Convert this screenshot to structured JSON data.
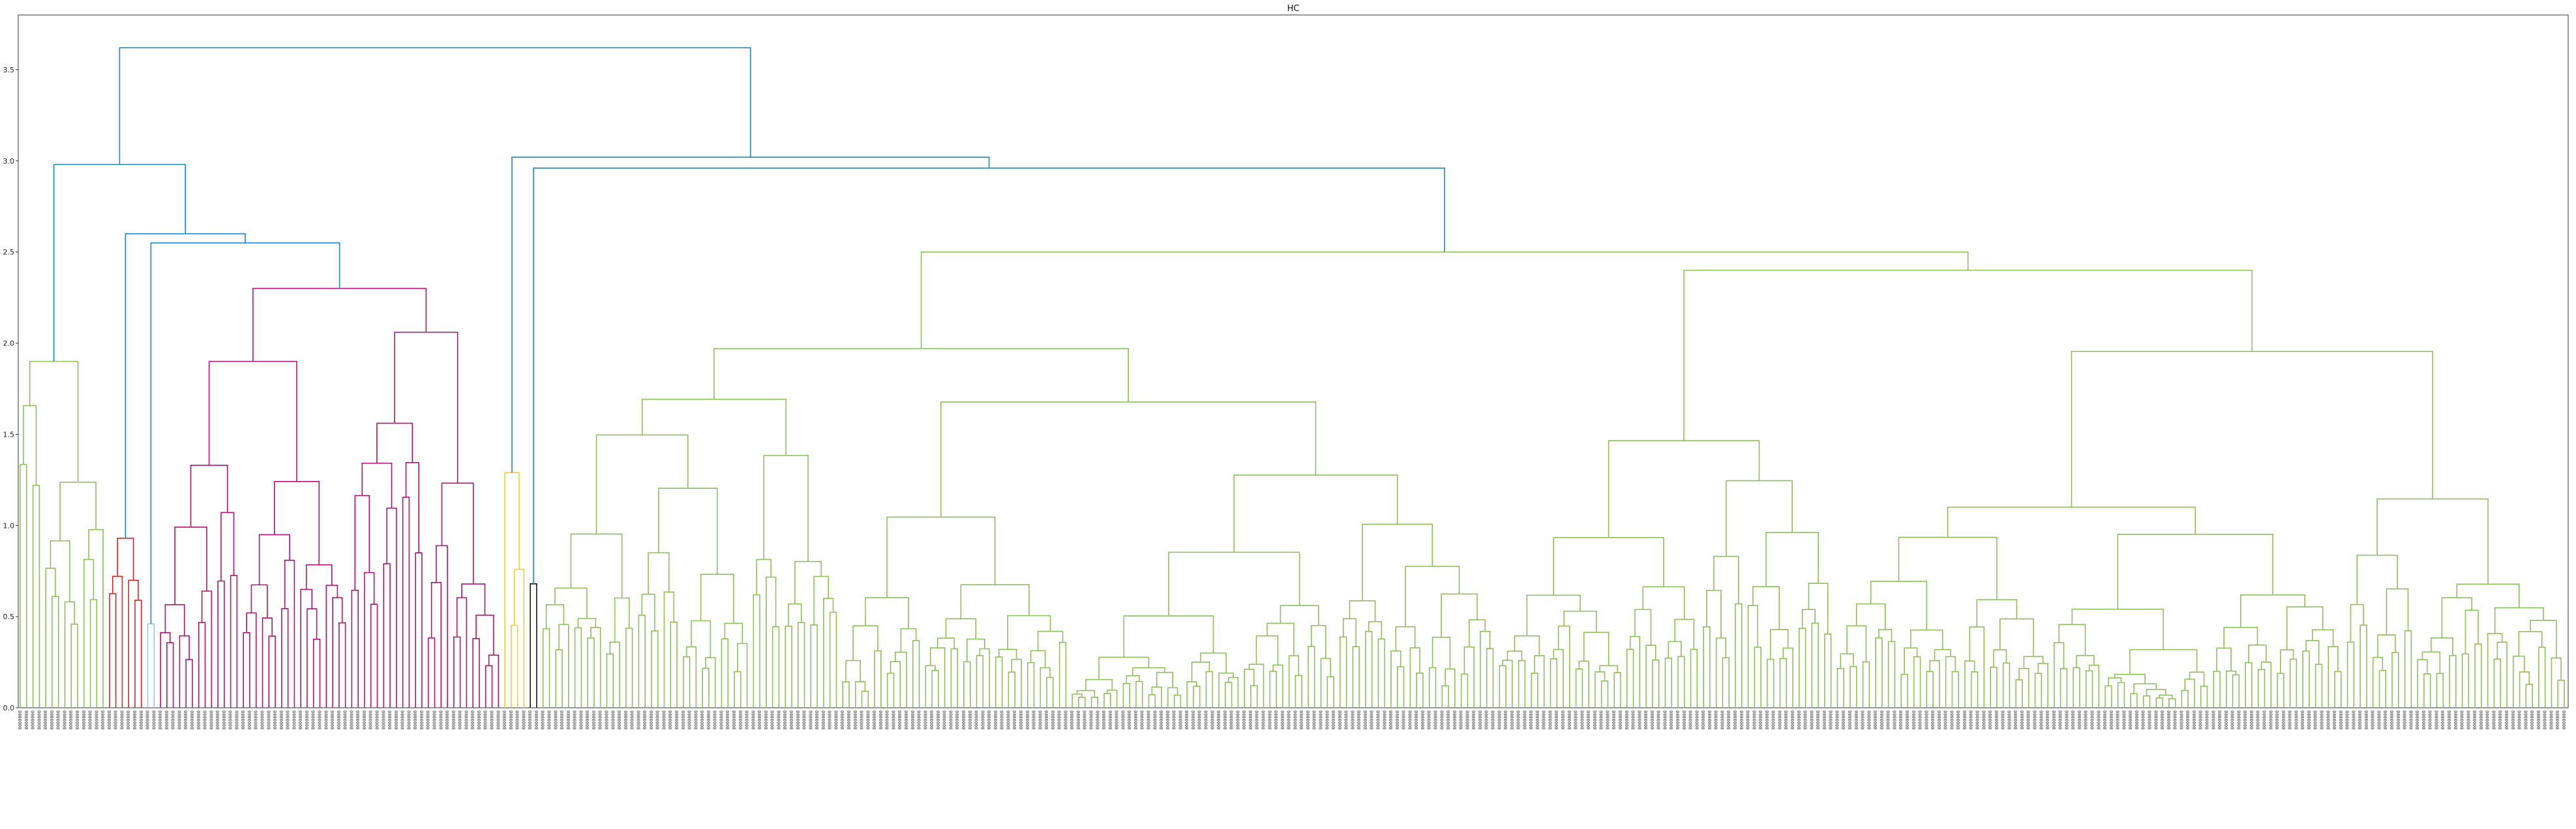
{
  "chart_data": {
    "type": "dendrogram",
    "title": "HC",
    "xlabel": "",
    "ylabel": "",
    "ylim": [
      0,
      3.8
    ],
    "yticks": [
      0.0,
      0.5,
      1.0,
      1.5,
      2.0,
      2.5,
      3.0,
      3.5
    ],
    "ytick_labels": [
      "0.0",
      "0.5",
      "1.0",
      "1.5",
      "2.0",
      "2.5",
      "3.0",
      "3.5"
    ],
    "grid": false,
    "leaf_count": 400,
    "leaf_label_text": "0000000",
    "root": {
      "height": 3.62,
      "color": "#1a87c0",
      "children": [
        {
          "height": 2.98,
          "color": "#1a87c0",
          "children": [
            {
              "height": 1.9,
              "color": "#8fbf5a",
              "leaves": 14
            },
            {
              "height": 2.6,
              "color": "#1a87c0",
              "children": [
                {
                  "height": 0.93,
                  "color": "#d62728",
                  "leaves": 6
                },
                {
                  "height": 2.55,
                  "color": "#1a87c0",
                  "children": [
                    {
                      "height": 0.46,
                      "color": "#9ec5e6",
                      "leaves": 2
                    },
                    {
                      "height": 2.3,
                      "color": "#b0156e",
                      "children": [
                        {
                          "height": 1.9,
                          "color": "#b0156e",
                          "leaves": 30
                        },
                        {
                          "height": 2.06,
                          "color": "#b0156e",
                          "leaves": 24
                        }
                      ]
                    }
                  ]
                }
              ]
            }
          ]
        },
        {
          "height": 3.02,
          "color": "#1a87c0",
          "children": [
            {
              "height": 1.29,
              "color": "#f2d024",
              "leaves": 4
            },
            {
              "height": 2.96,
              "color": "#1a87c0",
              "children": [
                {
                  "height": 0.68,
                  "color": "#111111",
                  "leaves": 2
                },
                {
                  "height": 2.5,
                  "color": "#8fbf5a",
                  "children": [
                    {
                      "height": 1.97,
                      "color": "#8fbf5a",
                      "leaves": 150
                    },
                    {
                      "height": 2.4,
                      "color": "#8fbf5a",
                      "leaves": 168
                    }
                  ]
                }
              ]
            }
          ]
        }
      ]
    }
  }
}
